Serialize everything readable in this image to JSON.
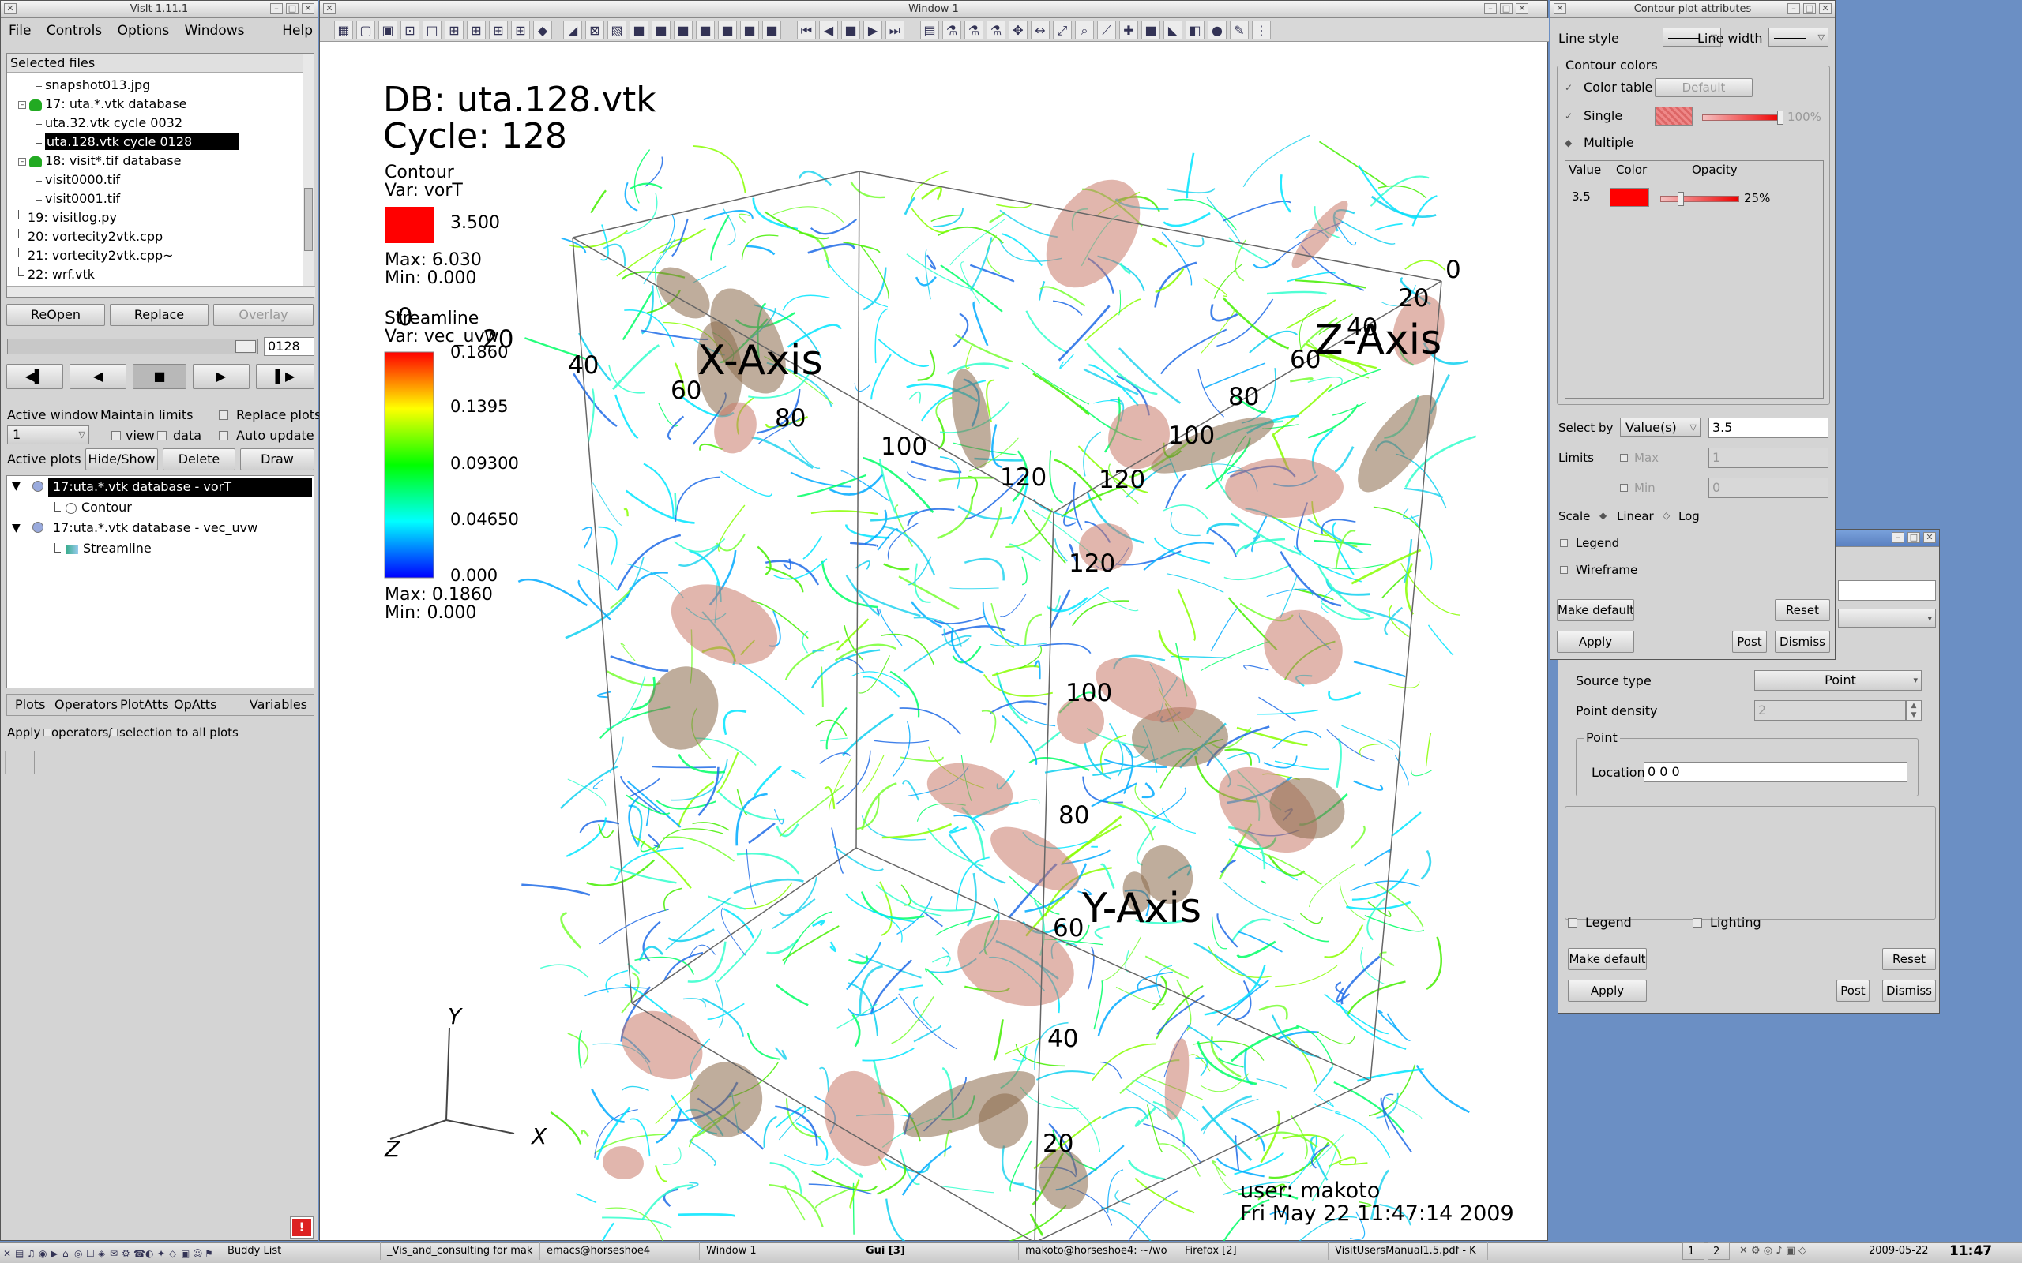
{
  "main_window": {
    "title": "VisIt 1.11.1",
    "menu": [
      "File",
      "Controls",
      "Options",
      "Windows",
      "Help"
    ],
    "selected_files_label": "Selected files",
    "files": [
      {
        "text": "snapshot013.jpg",
        "level": 2,
        "db": false,
        "selected": false
      },
      {
        "text": "17: uta.*.vtk database",
        "level": 1,
        "db": true,
        "selected": false
      },
      {
        "text": "uta.32.vtk cycle 0032",
        "level": 2,
        "db": false,
        "selected": false
      },
      {
        "text": "uta.128.vtk cycle 0128",
        "level": 2,
        "db": false,
        "selected": true
      },
      {
        "text": "18: visit*.tif database",
        "level": 1,
        "db": true,
        "selected": false
      },
      {
        "text": "visit0000.tif",
        "level": 2,
        "db": false,
        "selected": false
      },
      {
        "text": "visit0001.tif",
        "level": 2,
        "db": false,
        "selected": false
      },
      {
        "text": "19: visitlog.py",
        "level": 1,
        "db": false,
        "selected": false
      },
      {
        "text": "20: vortecity2vtk.cpp",
        "level": 1,
        "db": false,
        "selected": false
      },
      {
        "text": "21: vortecity2vtk.cpp~",
        "level": 1,
        "db": false,
        "selected": false
      },
      {
        "text": "22: wrf.vtk",
        "level": 1,
        "db": false,
        "selected": false
      }
    ],
    "reopen": "ReOpen",
    "replace": "Replace",
    "overlay": "Overlay",
    "time_value": "0128",
    "active_window_label": "Active window",
    "active_window_value": "1",
    "maintain_limits_label": "Maintain limits",
    "view_label": "view",
    "data_label": "data",
    "replace_plots_label": "Replace plots",
    "auto_update_label": "Auto update",
    "active_plots_label": "Active plots",
    "hide_show": "Hide/Show",
    "delete": "Delete",
    "draw": "Draw",
    "plots": [
      {
        "text": "17:uta.*.vtk database - vorT",
        "selected": true,
        "child": "Contour"
      },
      {
        "text": "17:uta.*.vtk database - vec_uvw",
        "selected": false,
        "child": "Streamline"
      }
    ],
    "bottom_menu": [
      "Plots",
      "Operators",
      "PlotAtts",
      "OpAtts",
      "Variables"
    ],
    "apply_text": "Apply",
    "operators_text": "operators/",
    "selection_text": "selection to all plots"
  },
  "vis_window": {
    "title": "Window 1",
    "db_line": "DB: uta.128.vtk",
    "cycle_line": "Cycle: 128",
    "contour_legend": {
      "title": "Contour",
      "var": "Var: vorT",
      "value": "3.500",
      "max": "Max:  6.030",
      "min": "Min:  0.000",
      "color": "#ff0000"
    },
    "streamline_legend": {
      "title": "Streamline",
      "var": "Var: vec_uvw",
      "ticks": [
        "0.1860",
        "0.1395",
        "0.09300",
        "0.04650",
        "0.000"
      ],
      "max": "Max:  0.1860",
      "min": "Min:  0.000"
    },
    "axes": {
      "x_label": "X-Axis",
      "y_label": "Y-Axis",
      "z_label": "Z-Axis",
      "x_ticks": [
        "0",
        "20",
        "40",
        "60",
        "80",
        "100",
        "120"
      ],
      "y_ticks": [
        "120",
        "100",
        "80",
        "60",
        "40",
        "20"
      ],
      "z_ticks": [
        "0",
        "20",
        "40",
        "60",
        "80",
        "100",
        "120"
      ]
    },
    "triad": {
      "x": "X",
      "y": "Y",
      "z": "Z"
    },
    "user": "user: makoto",
    "date": "Fri May 22 11:47:14 2009"
  },
  "contour_window": {
    "title": "Contour plot attributes",
    "line_style": "Line style",
    "line_width": "Line width",
    "contour_colors": "Contour colors",
    "color_table": "Color table",
    "default_btn": "Default",
    "single": "Single",
    "single_opacity": "100%",
    "multiple": "Multiple",
    "col_value": "Value",
    "col_color": "Color",
    "col_opacity": "Opacity",
    "row_value": "3.5",
    "row_opacity": "25%",
    "select_by": "Select by",
    "select_mode": "Value(s)",
    "select_value": "3.5",
    "limits": "Limits",
    "max": "Max",
    "max_value": "1",
    "min": "Min",
    "min_value": "0",
    "scale": "Scale",
    "linear": "Linear",
    "log": "Log",
    "legend": "Legend",
    "wireframe": "Wireframe",
    "make_default": "Make default",
    "reset": "Reset",
    "apply": "Apply",
    "post": "Post",
    "dismiss": "Dismiss"
  },
  "stream_window": {
    "source_type": "Source type",
    "source_value": "Point",
    "point_density": "Point density",
    "density_value": "2",
    "point_group": "Point",
    "location": "Location",
    "location_value": "0 0 0",
    "legend": "Legend",
    "lighting": "Lighting",
    "make_default": "Make default",
    "reset": "Reset",
    "apply": "Apply",
    "post": "Post",
    "dismiss": "Dismiss"
  },
  "taskbar": {
    "items": [
      "Buddy List",
      "_Vis_and_consulting for mak",
      "emacs@horseshoe4",
      "Window 1",
      "Gui [3]",
      "makoto@horseshoe4: ~/wo",
      "Firefox [2]",
      "VisitUsersManual1.5.pdf - K"
    ],
    "desktops": [
      "1",
      "2"
    ],
    "date": "2009-05-22",
    "time": "11:47"
  }
}
